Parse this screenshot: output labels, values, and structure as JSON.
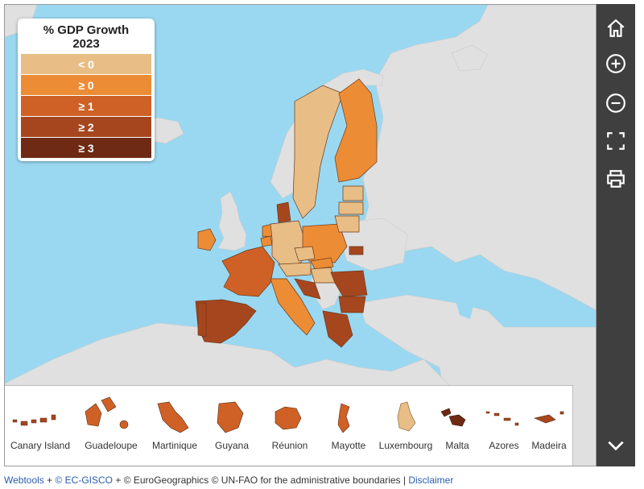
{
  "legend": {
    "title_line1": "% GDP Growth",
    "title_line2": "2023",
    "classes": [
      {
        "label": "< 0",
        "color": "#e8bd86"
      },
      {
        "label": "≥ 0",
        "color": "#ec8c35"
      },
      {
        "label": "≥ 1",
        "color": "#cf6126"
      },
      {
        "label": "≥ 2",
        "color": "#a6461f"
      },
      {
        "label": "≥ 3",
        "color": "#6e2a14"
      }
    ]
  },
  "colors": {
    "sea": "#9ad8f2",
    "non_eu_land": "#e0e0e0",
    "toolbar_bg": "#3f3f3f"
  },
  "toolbar": {
    "buttons": [
      {
        "name": "home-icon"
      },
      {
        "name": "zoom-in-icon"
      },
      {
        "name": "zoom-out-icon"
      },
      {
        "name": "fullscreen-icon"
      },
      {
        "name": "print-icon"
      },
      {
        "name": "chevron-down-icon"
      }
    ]
  },
  "outermost_regions": [
    {
      "label": "Canary Island"
    },
    {
      "label": "Guadeloupe"
    },
    {
      "label": "Martinique"
    },
    {
      "label": "Guyana"
    },
    {
      "label": "Réunion"
    },
    {
      "label": "Mayotte"
    },
    {
      "label": "Luxembourg"
    },
    {
      "label": "Malta"
    },
    {
      "label": "Azores"
    },
    {
      "label": "Madeira"
    }
  ],
  "footer": {
    "webtools": "Webtools",
    "sep1": " + ",
    "gisco": "© EC-GISCO",
    "sep2": " + ",
    "credits": "© EuroGeographics © UN-FAO for the administrative boundaries",
    "sep3": " | ",
    "disclaimer": "Disclaimer"
  }
}
